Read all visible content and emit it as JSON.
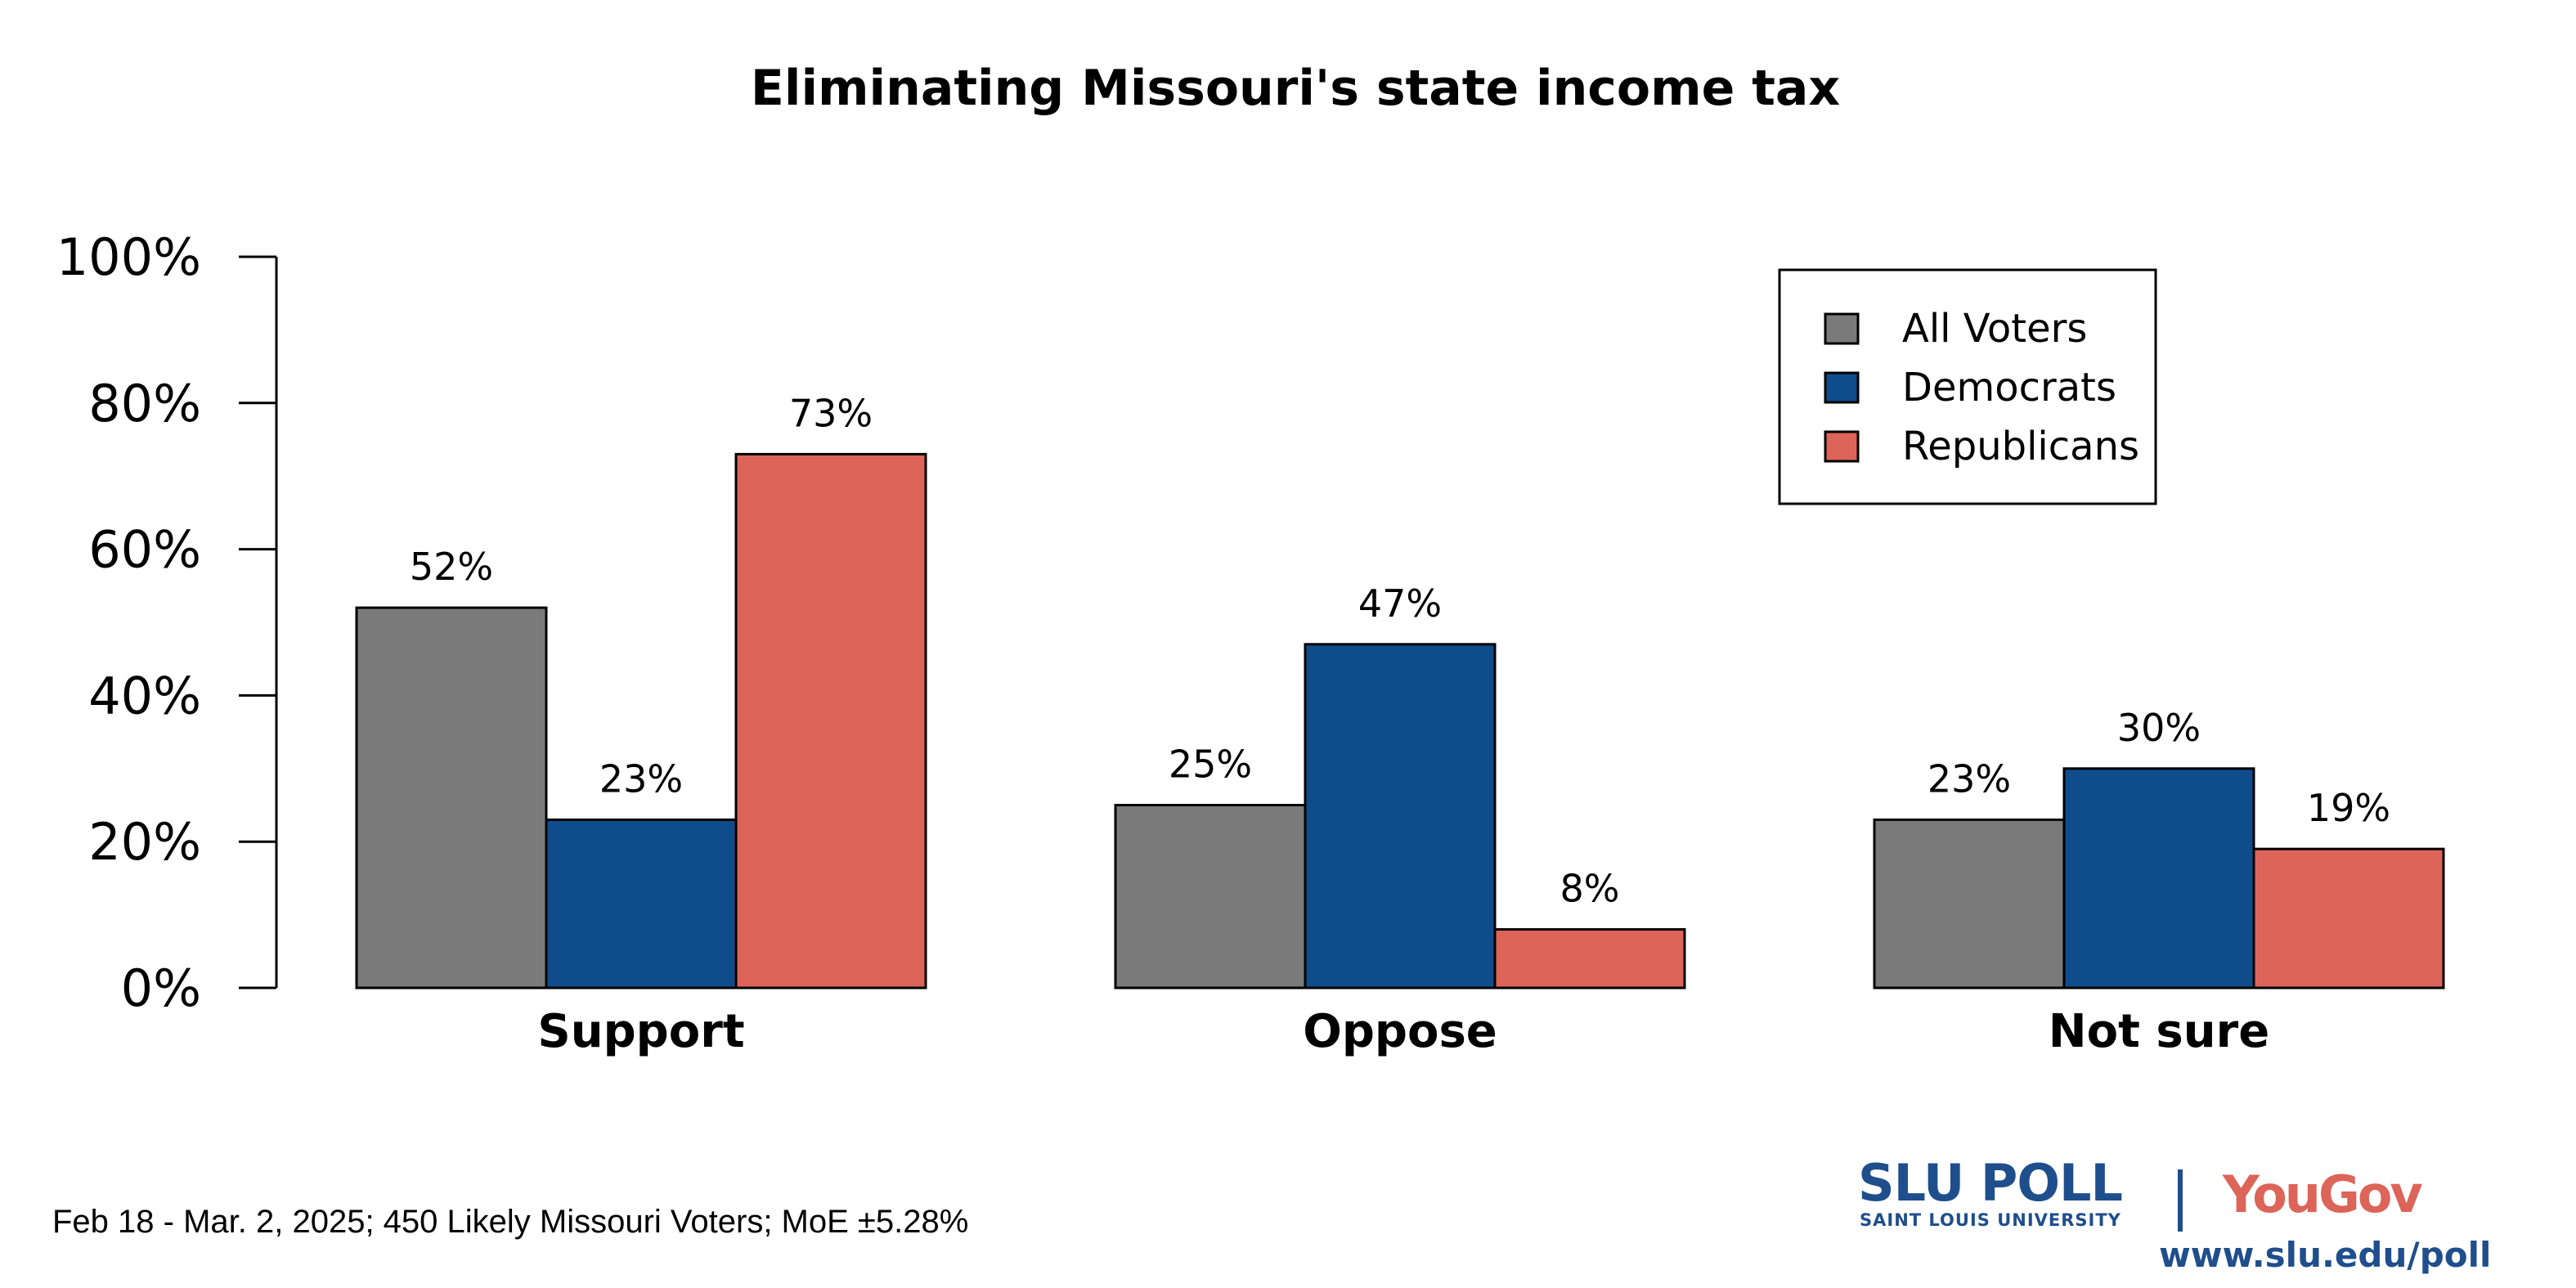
{
  "chart_data": {
    "type": "bar",
    "title": "Eliminating Missouri's state income tax",
    "categories": [
      "Support",
      "Oppose",
      "Not sure"
    ],
    "series": [
      {
        "name": "All Voters",
        "color": "#7a7a7a",
        "values": [
          52,
          25,
          23
        ]
      },
      {
        "name": "Democrats",
        "color": "#0f4c8c",
        "values": [
          23,
          47,
          30
        ]
      },
      {
        "name": "Republicans",
        "color": "#dd6458",
        "values": [
          73,
          8,
          19
        ]
      }
    ],
    "ylim": [
      0,
      100
    ],
    "yticks": [
      "0%",
      "20%",
      "40%",
      "60%",
      "80%",
      "100%"
    ],
    "value_suffix": "%",
    "xlabel": "",
    "ylabel": "",
    "grid": false,
    "legend_position": "top-right"
  },
  "footer": {
    "note": "Feb 18 - Mar. 2, 2025; 450 Likely Missouri Voters; MoE ±5.28%"
  },
  "logo": {
    "slu_poll": "SLU POLL",
    "slu_sub": "SAINT LOUIS UNIVERSITY",
    "yougov": "YouGov",
    "url": "www.slu.edu/poll"
  }
}
